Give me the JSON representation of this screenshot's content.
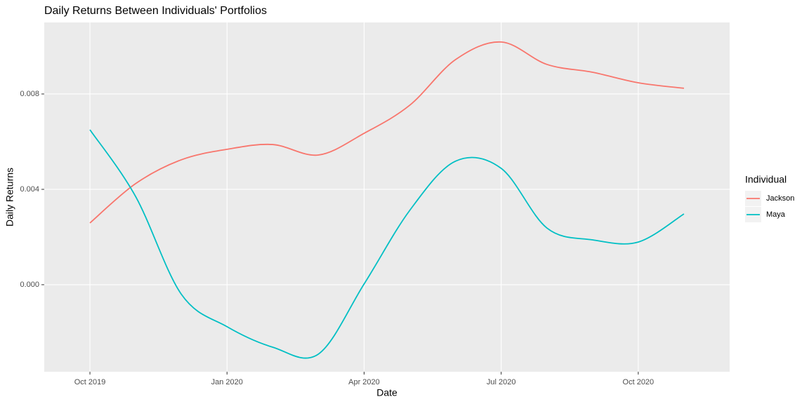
{
  "chart_data": {
    "type": "line",
    "title": "Daily Returns Between Individuals' Portfolios",
    "x_label": "Date",
    "y_label": "Daily Returns",
    "x": [
      "2019-10",
      "2019-11",
      "2019-12",
      "2020-01",
      "2020-02",
      "2020-03",
      "2020-04",
      "2020-05",
      "2020-06",
      "2020-07",
      "2020-08",
      "2020-09",
      "2020-10",
      "2020-11"
    ],
    "series": [
      {
        "name": "Jackson",
        "color": "#F8766D",
        "values": [
          0.00259,
          0.00424,
          0.00524,
          0.00568,
          0.00588,
          0.00544,
          0.00635,
          0.00753,
          0.00944,
          0.01018,
          0.00924,
          0.00891,
          0.00847,
          0.00824
        ]
      },
      {
        "name": "Maya",
        "color": "#00BFC4",
        "values": [
          0.0065,
          0.0037,
          -0.0004,
          -0.00176,
          -0.00262,
          -0.00291,
          3e-05,
          0.00312,
          0.00518,
          0.00488,
          0.00238,
          0.00188,
          0.00179,
          0.00297
        ]
      }
    ],
    "xlim": [
      "2019-09",
      "2020-12"
    ],
    "xticks": [
      {
        "value": "2019-10",
        "label": "Oct 2019"
      },
      {
        "value": "2020-01",
        "label": "Jan 2020"
      },
      {
        "value": "2020-04",
        "label": "Apr 2020"
      },
      {
        "value": "2020-07",
        "label": "Jul 2020"
      },
      {
        "value": "2020-10",
        "label": "Oct 2020"
      }
    ],
    "ylim": [
      -0.00365,
      0.011
    ],
    "yticks": [
      {
        "value": 0,
        "label": "0.000"
      },
      {
        "value": 0.004,
        "label": "0.004"
      },
      {
        "value": 0.008,
        "label": "0.008"
      }
    ],
    "grid": true,
    "legend_title": "Individual",
    "legend_position": "right"
  }
}
